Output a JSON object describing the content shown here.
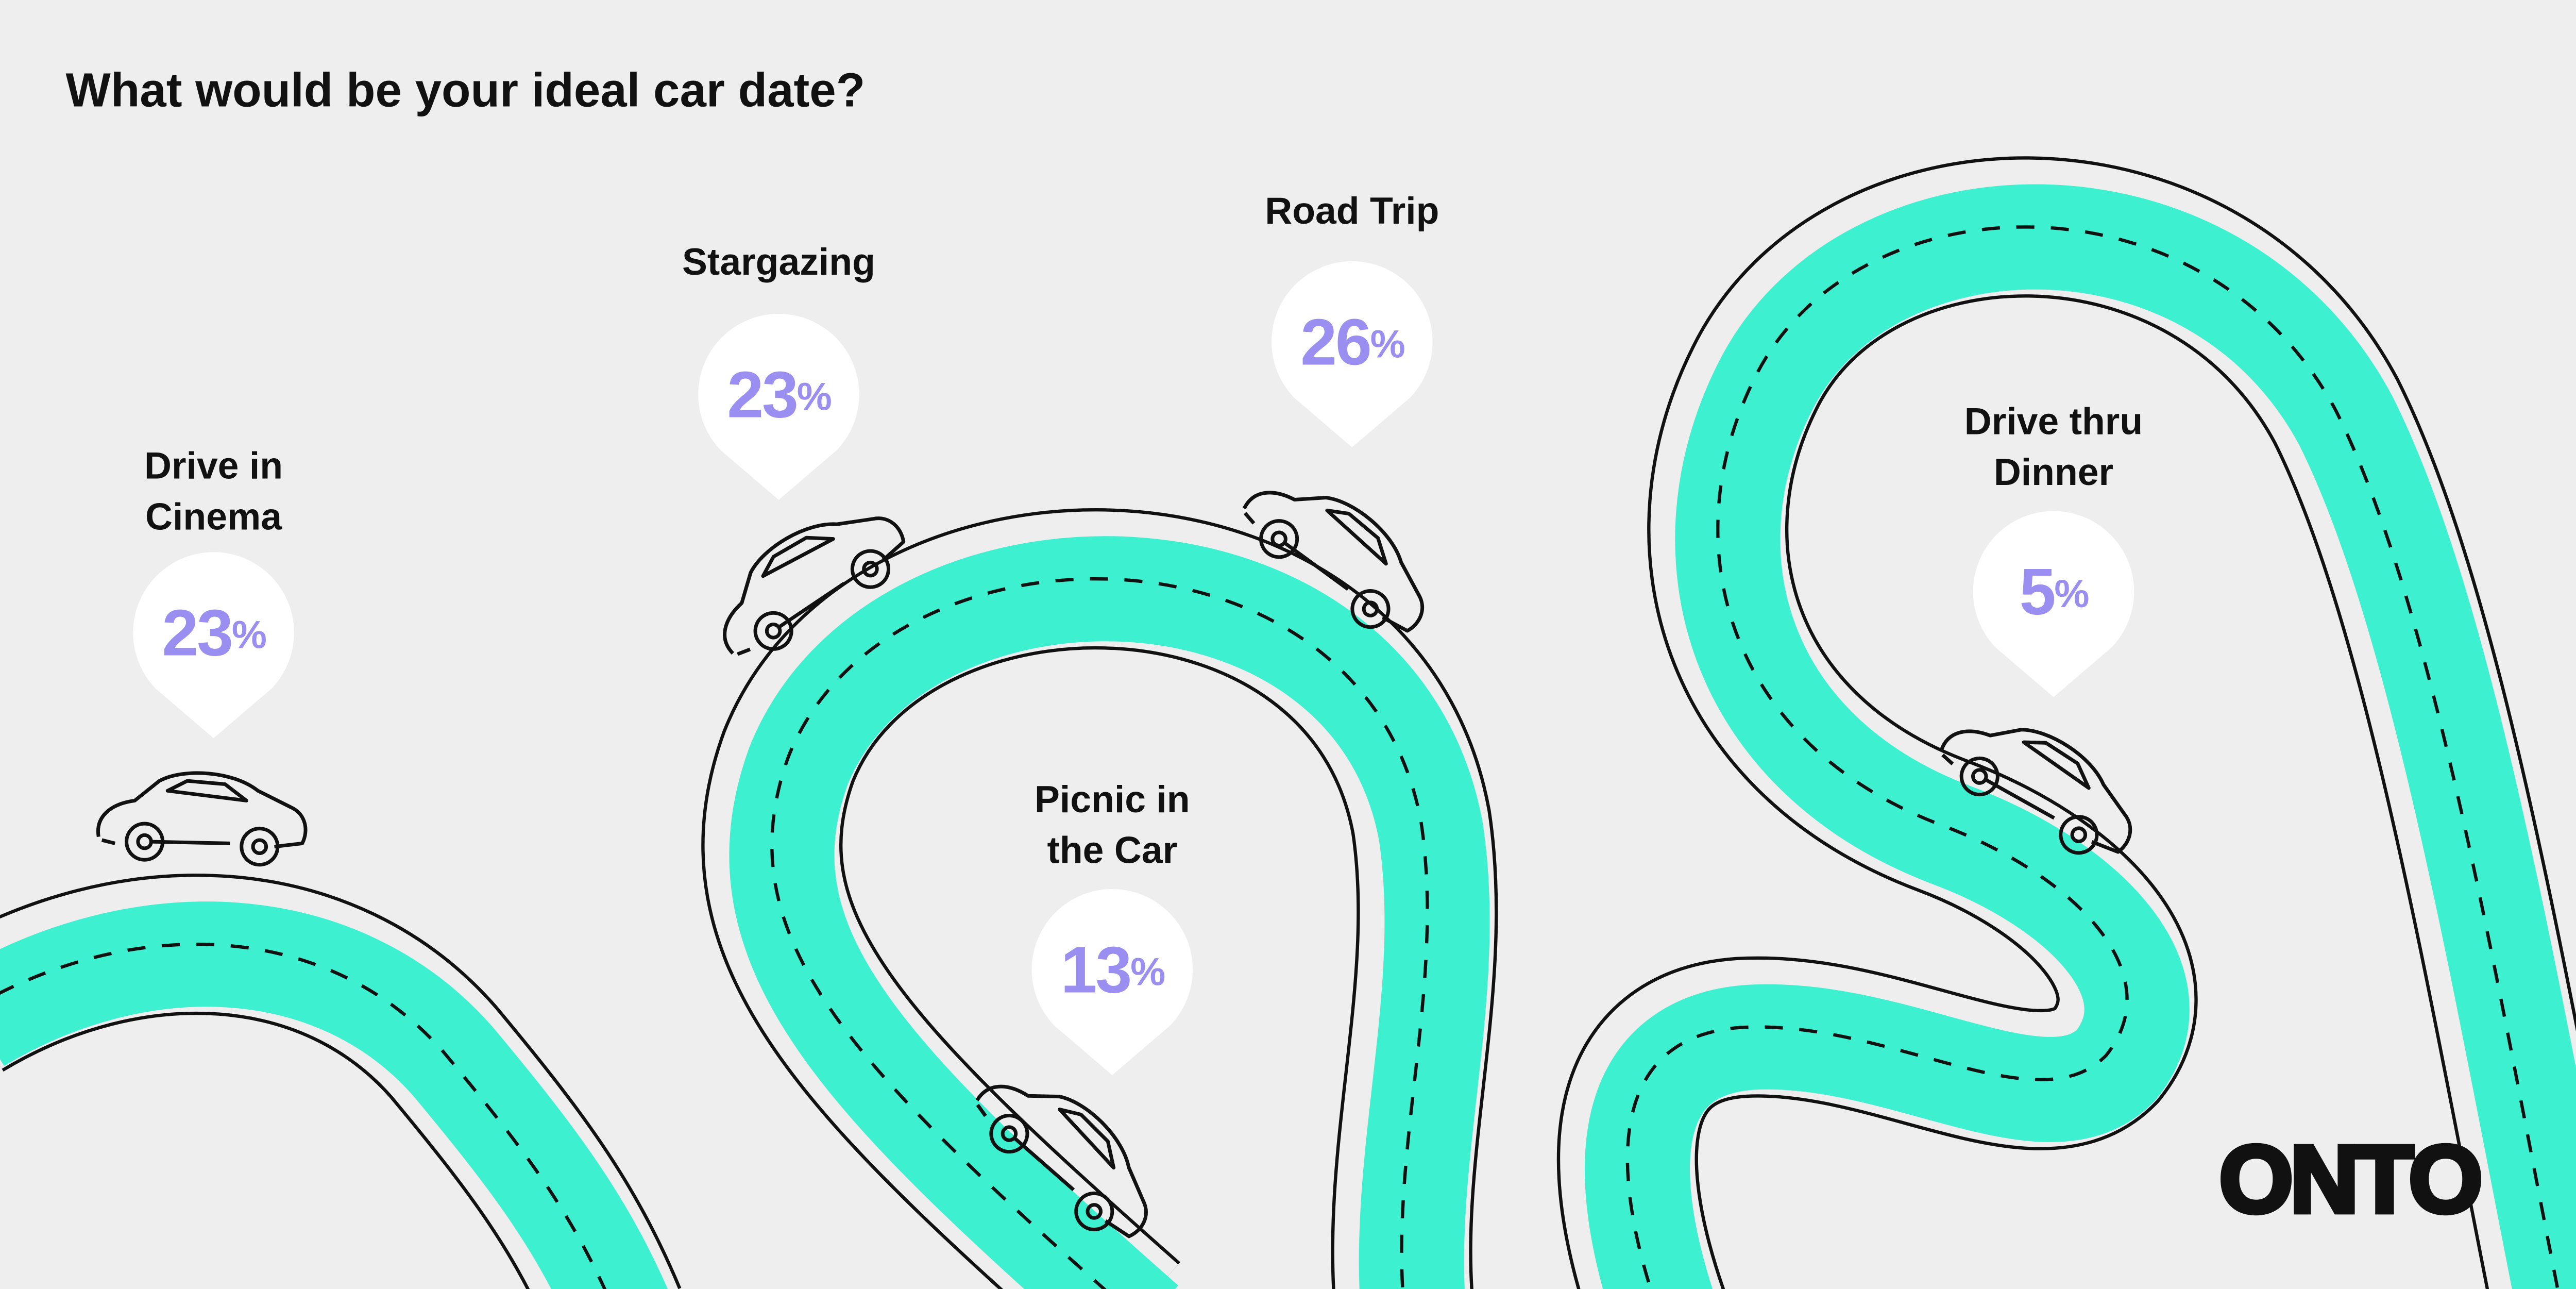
{
  "chart_data": {
    "type": "pin",
    "title": "What would be your ideal car date?",
    "categories": [
      "Drive in Cinema",
      "Stargazing",
      "Road Trip",
      "Picnic in the Car",
      "Drive thru Dinner"
    ],
    "values": [
      23,
      23,
      26,
      13,
      5
    ],
    "unit": "%",
    "color": "#9a8ef0"
  },
  "brand": "ONTO"
}
